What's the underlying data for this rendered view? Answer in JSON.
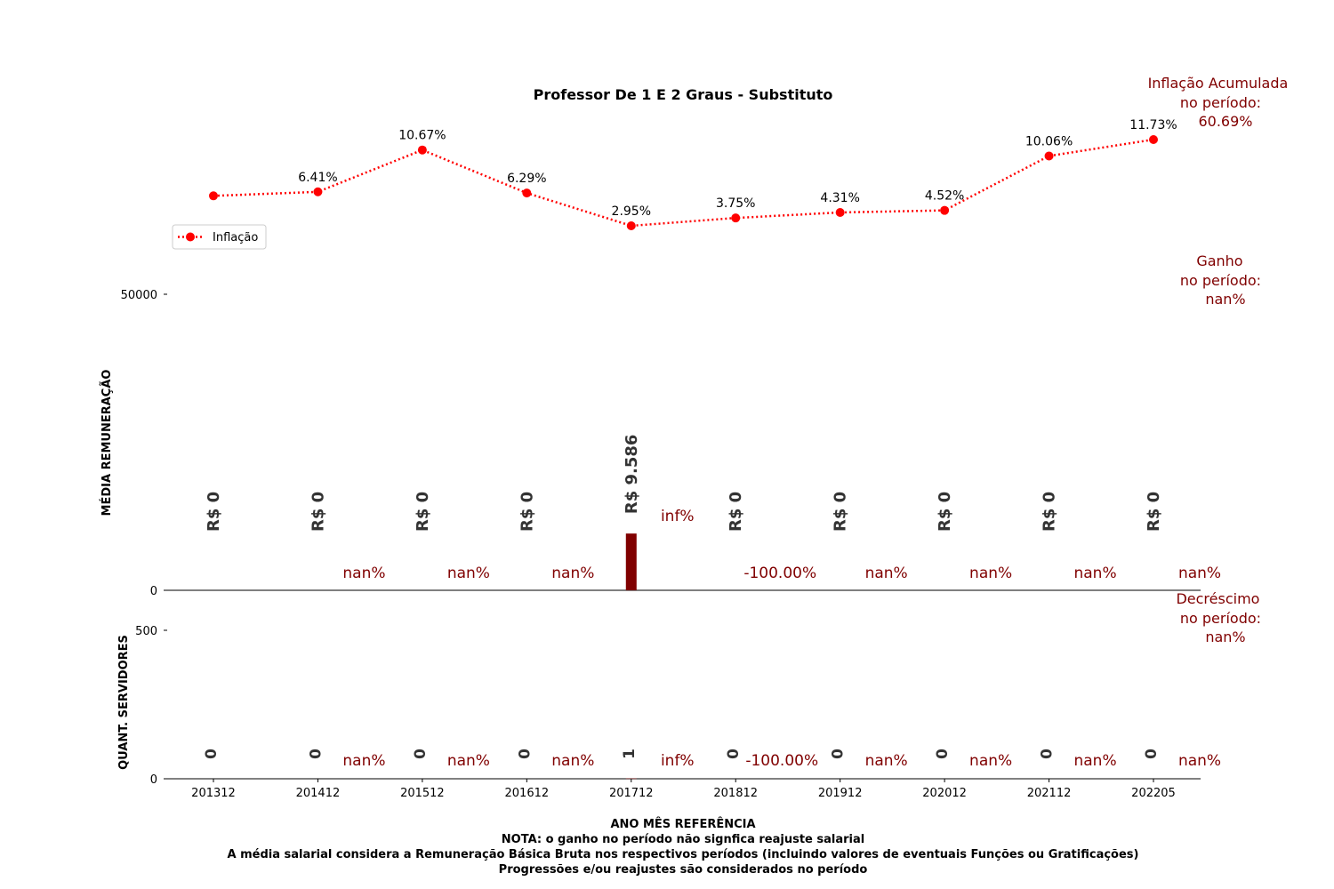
{
  "chart_data": [
    {
      "type": "line",
      "title": "Professor De 1  E 2  Graus - Substituto",
      "legend": {
        "position": "left",
        "entries": [
          "Inflação"
        ]
      },
      "series": [
        {
          "name": "Inflação",
          "values": [
            null,
            6.41,
            10.67,
            6.29,
            2.95,
            3.75,
            4.31,
            4.52,
            10.06,
            11.73
          ],
          "labels": [
            "",
            "6.41%",
            "10.67%",
            "6.29%",
            "2.95%",
            "3.75%",
            "4.31%",
            "4.52%",
            "10.06%",
            "11.73%"
          ]
        }
      ],
      "categories": [
        "201312",
        "201412",
        "201512",
        "201612",
        "201712",
        "201812",
        "201912",
        "202012",
        "202112",
        "202205"
      ],
      "color": "#ff0000",
      "annotation": {
        "lines": [
          "Inflação Acumulada",
          "no período:",
          "60.69%"
        ],
        "color": "#800000"
      }
    },
    {
      "type": "bar",
      "ylabel": "MÉDIA REMUNERAÇÃO",
      "yticks": [
        "0",
        "50000"
      ],
      "ylim": [
        0,
        50000
      ],
      "categories": [
        "201312",
        "201412",
        "201512",
        "201612",
        "201712",
        "201812",
        "201912",
        "202012",
        "202112",
        "202205"
      ],
      "values": [
        0,
        0,
        0,
        0,
        9586,
        0,
        0,
        0,
        0,
        0
      ],
      "value_labels": [
        "R$ 0",
        "R$ 0",
        "R$ 0",
        "R$ 0",
        "R$ 9.586",
        "R$ 0",
        "R$ 0",
        "R$ 0",
        "R$ 0",
        "R$ 0"
      ],
      "change_labels": [
        "nan%",
        "nan%",
        "nan%",
        "inf%",
        "-100.00%",
        "nan%",
        "nan%",
        "nan%",
        "nan%"
      ],
      "bar_color": "#800000",
      "annotation": {
        "lines": [
          "Ganho",
          "no período:",
          "nan%"
        ],
        "color": "#800000"
      }
    },
    {
      "type": "bar",
      "ylabel": "QUANT. SERVIDORES",
      "yticks": [
        "0",
        "500"
      ],
      "ylim": [
        0,
        500
      ],
      "categories": [
        "201312",
        "201412",
        "201512",
        "201612",
        "201712",
        "201812",
        "201912",
        "202012",
        "202112",
        "202205"
      ],
      "values": [
        0,
        0,
        0,
        0,
        1,
        0,
        0,
        0,
        0,
        0
      ],
      "value_labels": [
        "0",
        "0",
        "0",
        "0",
        "1",
        "0",
        "0",
        "0",
        "0",
        "0"
      ],
      "change_labels": [
        "nan%",
        "nan%",
        "nan%",
        "inf%",
        "-100.00%",
        "nan%",
        "nan%",
        "nan%",
        "nan%"
      ],
      "annotation": {
        "lines": [
          "Decréscimo",
          "no período:",
          "nan%"
        ],
        "color": "#800000"
      },
      "xlabel": "ANO MÊS REFERÊNCIA"
    }
  ],
  "footer": {
    "xlabel": "ANO MÊS REFERÊNCIA",
    "notes": [
      "NOTA: o ganho no período não signfica reajuste salarial",
      "A média salarial considera a Remuneração Básica Bruta nos respectivos períodos (incluindo valores de eventuais Funções ou Gratificações)",
      "Progressões e/ou reajustes são considerados no período"
    ]
  },
  "colors": {
    "line": "#ff0000",
    "accent": "#800000",
    "text": "#000000",
    "value_text": "#333333"
  }
}
